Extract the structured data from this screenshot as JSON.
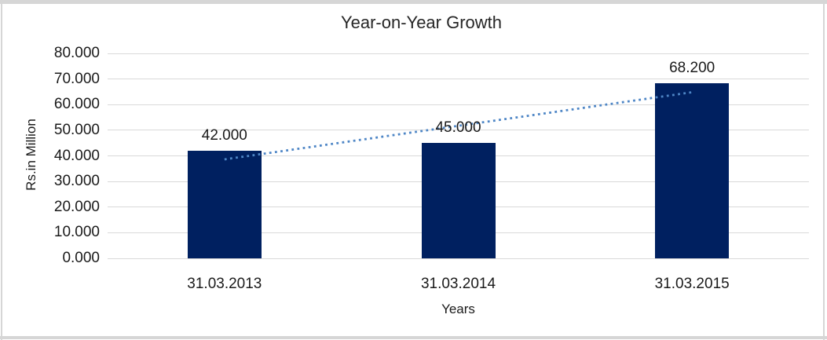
{
  "chart_data": {
    "type": "bar",
    "title": "Year-on-Year Growth",
    "xlabel": "Years",
    "ylabel": "Rs.in Million",
    "categories": [
      "31.03.2013",
      "31.03.2014",
      "31.03.2015"
    ],
    "values": [
      42.0,
      45.0,
      68.2
    ],
    "data_labels": [
      "42.000",
      "45.000",
      "68.200"
    ],
    "y_axis": {
      "min": 0,
      "max": 80,
      "step": 10,
      "tick_labels": [
        "0.000",
        "10.000",
        "20.000",
        "30.000",
        "40.000",
        "50.000",
        "60.000",
        "70.000",
        "80.000"
      ]
    },
    "ylim": [
      0,
      80
    ],
    "grid": true,
    "legend": "none",
    "trendline": {
      "type": "linear",
      "style": "dotted"
    },
    "colors": {
      "bar": "#002060",
      "trendline": "#4E86C6",
      "gridline": "#D9D9D9",
      "frame": "#D6D6D6",
      "text": "#1A1A1A"
    }
  }
}
